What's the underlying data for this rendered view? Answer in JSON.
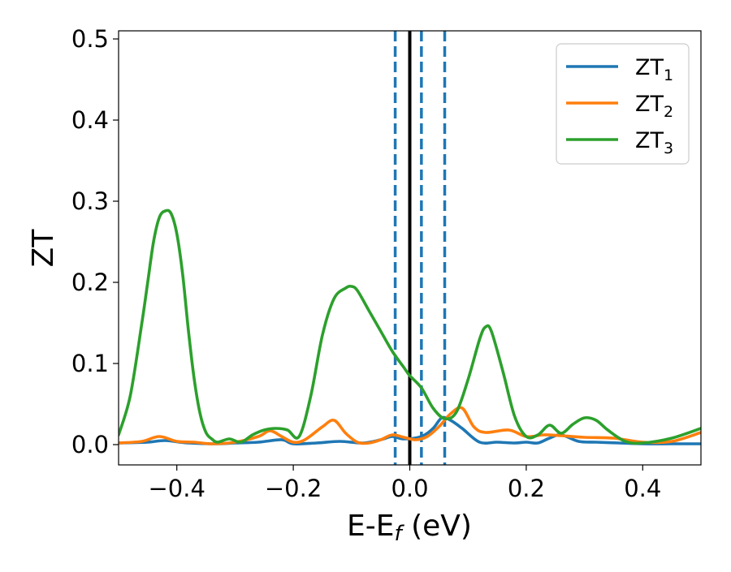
{
  "chart_data": {
    "type": "line",
    "xlabel": "E-E",
    "xlabel_sub": "f",
    "xlabel_unit": " (eV)",
    "ylabel": "ZT",
    "xlim": [
      -0.5,
      0.5
    ],
    "ylim": [
      -0.025,
      0.51
    ],
    "xticks": [
      -0.4,
      -0.2,
      0.0,
      0.2,
      0.4
    ],
    "xtick_labels": [
      "−0.4",
      "−0.2",
      "0.0",
      "0.2",
      "0.4"
    ],
    "yticks": [
      0.0,
      0.1,
      0.2,
      0.3,
      0.4,
      0.5
    ],
    "ytick_labels": [
      "0.0",
      "0.1",
      "0.2",
      "0.3",
      "0.4",
      "0.5"
    ],
    "grid": false,
    "legend_position": "top-right",
    "vlines": [
      {
        "x": 0.0,
        "style": "solid",
        "color": "#000000"
      },
      {
        "x": -0.025,
        "style": "dashed",
        "color": "#1f77b4"
      },
      {
        "x": 0.02,
        "style": "dashed",
        "color": "#1f77b4"
      },
      {
        "x": 0.06,
        "style": "dashed",
        "color": "#1f77b4"
      }
    ],
    "series": [
      {
        "name": "ZT",
        "name_sub": "1",
        "color": "#1f77b4",
        "x": [
          -0.5,
          -0.45,
          -0.42,
          -0.38,
          -0.33,
          -0.3,
          -0.26,
          -0.22,
          -0.2,
          -0.16,
          -0.12,
          -0.08,
          -0.05,
          -0.03,
          -0.01,
          0.02,
          0.04,
          0.055,
          0.07,
          0.09,
          0.12,
          0.15,
          0.18,
          0.2,
          0.22,
          0.24,
          0.26,
          0.29,
          0.32,
          0.36,
          0.4,
          0.45,
          0.5
        ],
        "values": [
          0.002,
          0.003,
          0.005,
          0.002,
          0.001,
          0.002,
          0.003,
          0.006,
          0.001,
          0.002,
          0.004,
          0.002,
          0.006,
          0.01,
          0.007,
          0.01,
          0.02,
          0.033,
          0.03,
          0.02,
          0.003,
          0.003,
          0.002,
          0.003,
          0.002,
          0.008,
          0.012,
          0.004,
          0.003,
          0.002,
          0.001,
          0.001,
          0.001
        ]
      },
      {
        "name": "ZT",
        "name_sub": "2",
        "color": "#ff7f0e",
        "x": [
          -0.5,
          -0.46,
          -0.43,
          -0.4,
          -0.37,
          -0.34,
          -0.3,
          -0.26,
          -0.24,
          -0.22,
          -0.2,
          -0.18,
          -0.15,
          -0.13,
          -0.11,
          -0.09,
          -0.07,
          -0.05,
          -0.03,
          -0.01,
          0.01,
          0.03,
          0.05,
          0.07,
          0.09,
          0.11,
          0.13,
          0.17,
          0.2,
          0.23,
          0.26,
          0.3,
          0.35,
          0.4,
          0.45,
          0.5
        ],
        "values": [
          0.002,
          0.004,
          0.01,
          0.004,
          0.003,
          0.001,
          0.003,
          0.01,
          0.017,
          0.01,
          0.003,
          0.006,
          0.022,
          0.03,
          0.014,
          0.003,
          0.002,
          0.006,
          0.012,
          0.009,
          0.006,
          0.01,
          0.022,
          0.038,
          0.045,
          0.022,
          0.015,
          0.018,
          0.01,
          0.012,
          0.011,
          0.009,
          0.008,
          0.003,
          0.004,
          0.015
        ]
      },
      {
        "name": "ZT",
        "name_sub": "3",
        "color": "#2ca02c",
        "x": [
          -0.5,
          -0.48,
          -0.46,
          -0.45,
          -0.44,
          -0.43,
          -0.42,
          -0.41,
          -0.4,
          -0.39,
          -0.38,
          -0.37,
          -0.36,
          -0.35,
          -0.34,
          -0.33,
          -0.31,
          -0.29,
          -0.27,
          -0.25,
          -0.23,
          -0.21,
          -0.19,
          -0.17,
          -0.15,
          -0.13,
          -0.11,
          -0.1,
          -0.09,
          -0.07,
          -0.05,
          -0.03,
          -0.01,
          0.0,
          0.02,
          0.04,
          0.06,
          0.08,
          0.1,
          0.12,
          0.13,
          0.14,
          0.16,
          0.18,
          0.2,
          0.22,
          0.24,
          0.26,
          0.28,
          0.3,
          0.32,
          0.34,
          0.37,
          0.4,
          0.45,
          0.5
        ],
        "values": [
          0.012,
          0.06,
          0.15,
          0.2,
          0.25,
          0.28,
          0.288,
          0.285,
          0.26,
          0.21,
          0.14,
          0.08,
          0.038,
          0.015,
          0.007,
          0.003,
          0.007,
          0.003,
          0.012,
          0.018,
          0.02,
          0.018,
          0.01,
          0.06,
          0.135,
          0.18,
          0.193,
          0.195,
          0.19,
          0.165,
          0.14,
          0.115,
          0.095,
          0.085,
          0.07,
          0.045,
          0.032,
          0.04,
          0.08,
          0.13,
          0.145,
          0.14,
          0.09,
          0.035,
          0.01,
          0.012,
          0.024,
          0.014,
          0.025,
          0.033,
          0.03,
          0.018,
          0.004,
          0.002,
          0.008,
          0.02
        ]
      }
    ]
  }
}
